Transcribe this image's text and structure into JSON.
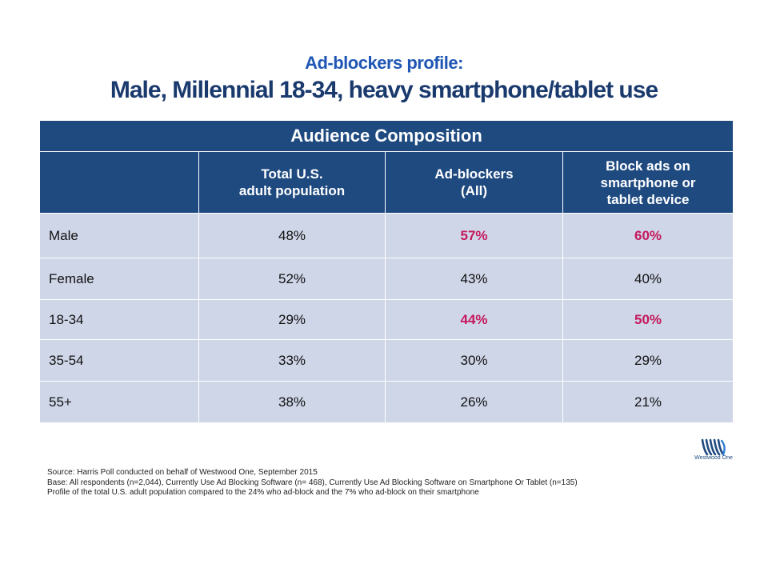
{
  "header": {
    "subtitle": "Ad-blockers profile:",
    "title": "Male, Millennial 18-34, heavy smartphone/tablet use"
  },
  "table": {
    "banner": "Audience Composition",
    "columns": [
      "",
      "Total U.S.\nadult population",
      "Ad-blockers\n(All)",
      "Block ads on\nsmartphone or\ntablet device"
    ],
    "rows": [
      {
        "label": "Male",
        "values": [
          "48%",
          "57%",
          "60%"
        ],
        "highlight": [
          false,
          true,
          true
        ]
      },
      {
        "label": "Female",
        "values": [
          "52%",
          "43%",
          "40%"
        ],
        "highlight": [
          false,
          false,
          false
        ]
      },
      {
        "label": "18-34",
        "values": [
          "29%",
          "44%",
          "50%"
        ],
        "highlight": [
          false,
          true,
          true
        ]
      },
      {
        "label": "35-54",
        "values": [
          "33%",
          "30%",
          "29%"
        ],
        "highlight": [
          false,
          false,
          false
        ]
      },
      {
        "label": "55+",
        "values": [
          "38%",
          "26%",
          "21%"
        ],
        "highlight": [
          false,
          false,
          false
        ]
      }
    ]
  },
  "logo": {
    "text": "Westwood One",
    "icon": "westwood-one-logo-icon"
  },
  "footnotes": {
    "source": "Source: Harris Poll conducted on behalf of Westwood One, September 2015",
    "base": "Base: All respondents (n=2,044), Currently Use Ad Blocking Software (n= 468), Currently Use Ad Blocking Software on Smartphone Or Tablet (n=135)",
    "profile": "Profile of the total U.S. adult population compared to the 24% who ad-block and the 7% who ad-block on their smartphone"
  },
  "colors": {
    "header_bg": "#1f4a80",
    "row_bg": "#cfd6e8",
    "highlight_text": "#c4185c",
    "title": "#1a3a6e",
    "subtitle": "#1f56b5"
  }
}
